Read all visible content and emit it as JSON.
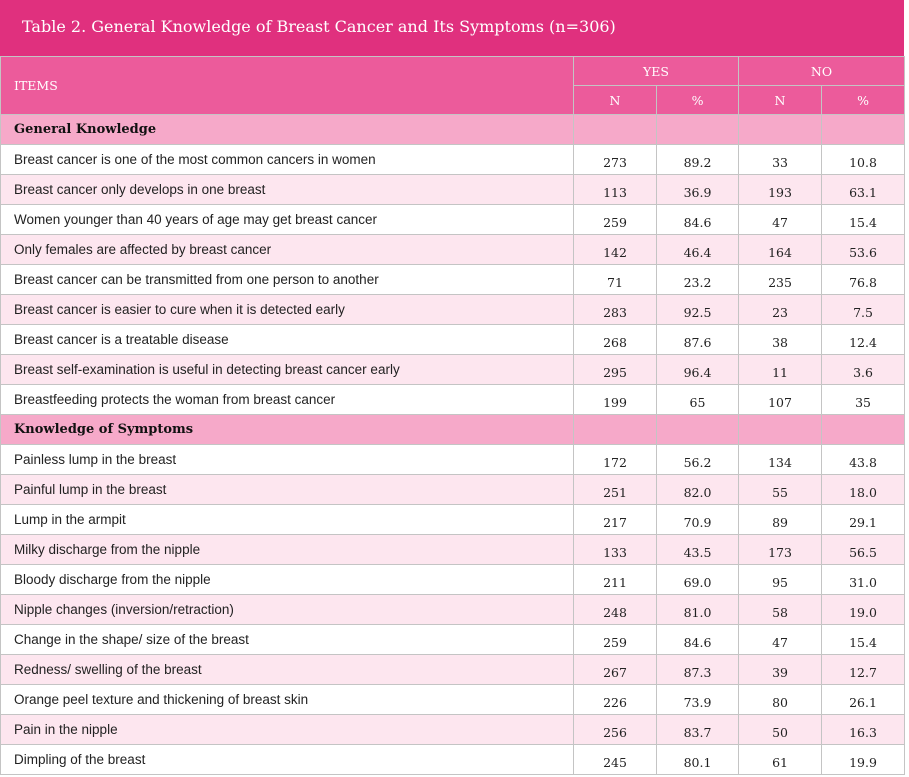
{
  "title": "Table 2. General Knowledge of Breast Cancer and Its Symptoms (n=306)",
  "header": {
    "items": "ITEMS",
    "yes": "YES",
    "no": "NO",
    "n": "N",
    "pct": "%"
  },
  "sections": [
    {
      "label": "General Knowledge",
      "rows": [
        {
          "item": "Breast cancer is one of the most common cancers in women",
          "yes_n": "273",
          "yes_pct": "89.2",
          "no_n": "33",
          "no_pct": "10.8"
        },
        {
          "item": "Breast cancer only develops in one breast",
          "yes_n": "113",
          "yes_pct": "36.9",
          "no_n": "193",
          "no_pct": "63.1"
        },
        {
          "item": "Women younger than 40 years of age may get breast cancer",
          "yes_n": "259",
          "yes_pct": "84.6",
          "no_n": "47",
          "no_pct": "15.4"
        },
        {
          "item": "Only females are affected by breast cancer",
          "yes_n": "142",
          "yes_pct": "46.4",
          "no_n": "164",
          "no_pct": "53.6"
        },
        {
          "item": "Breast cancer can be transmitted from one person to another",
          "yes_n": "71",
          "yes_pct": "23.2",
          "no_n": "235",
          "no_pct": "76.8"
        },
        {
          "item": "Breast cancer is easier to cure when it is detected early",
          "yes_n": "283",
          "yes_pct": "92.5",
          "no_n": "23",
          "no_pct": "7.5"
        },
        {
          "item": "Breast cancer is a treatable disease",
          "yes_n": "268",
          "yes_pct": "87.6",
          "no_n": "38",
          "no_pct": "12.4"
        },
        {
          "item": "Breast self-examination is useful in detecting breast cancer early",
          "yes_n": "295",
          "yes_pct": "96.4",
          "no_n": "11",
          "no_pct": "3.6"
        },
        {
          "item": "Breastfeeding protects the woman from breast cancer",
          "yes_n": "199",
          "yes_pct": "65",
          "no_n": "107",
          "no_pct": "35"
        }
      ]
    },
    {
      "label": "Knowledge of Symptoms",
      "rows": [
        {
          "item": "Painless lump in the breast",
          "yes_n": "172",
          "yes_pct": "56.2",
          "no_n": "134",
          "no_pct": "43.8"
        },
        {
          "item": "Painful lump in the breast",
          "yes_n": "251",
          "yes_pct": "82.0",
          "no_n": "55",
          "no_pct": "18.0"
        },
        {
          "item": "Lump in the armpit",
          "yes_n": "217",
          "yes_pct": "70.9",
          "no_n": "89",
          "no_pct": "29.1"
        },
        {
          "item": "Milky discharge from the nipple",
          "yes_n": "133",
          "yes_pct": "43.5",
          "no_n": "173",
          "no_pct": "56.5"
        },
        {
          "item": "Bloody discharge from the nipple",
          "yes_n": "211",
          "yes_pct": "69.0",
          "no_n": "95",
          "no_pct": "31.0"
        },
        {
          "item": "Nipple changes (inversion/retraction)",
          "yes_n": "248",
          "yes_pct": "81.0",
          "no_n": "58",
          "no_pct": "19.0"
        },
        {
          "item": "Change in the shape/ size of the breast",
          "yes_n": "259",
          "yes_pct": "84.6",
          "no_n": "47",
          "no_pct": "15.4"
        },
        {
          "item": "Redness/ swelling of the breast",
          "yes_n": "267",
          "yes_pct": "87.3",
          "no_n": "39",
          "no_pct": "12.7"
        },
        {
          "item": "Orange peel texture and thickening of breast skin",
          "yes_n": "226",
          "yes_pct": "73.9",
          "no_n": "80",
          "no_pct": "26.1"
        },
        {
          "item": "Pain in the nipple",
          "yes_n": "256",
          "yes_pct": "83.7",
          "no_n": "50",
          "no_pct": "16.3"
        },
        {
          "item": "Dimpling of the breast",
          "yes_n": "245",
          "yes_pct": "80.1",
          "no_n": "61",
          "no_pct": "19.9"
        }
      ]
    }
  ]
}
